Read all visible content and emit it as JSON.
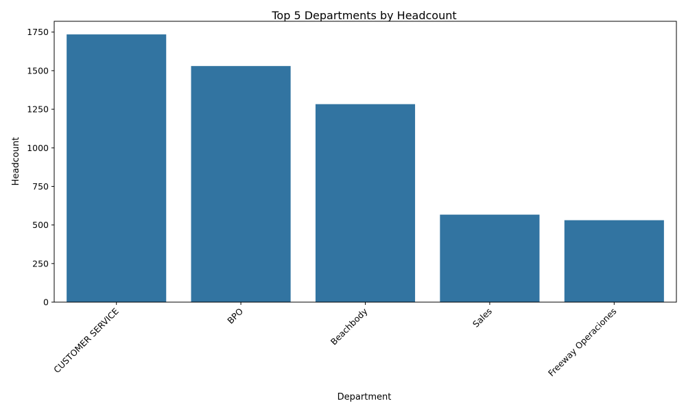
{
  "chart_data": {
    "type": "bar",
    "title": "Top 5 Departments by Headcount",
    "xlabel": "Department",
    "ylabel": "Headcount",
    "categories": [
      "CUSTOMER SERVICE",
      "BPO",
      "Beachbody",
      "Sales",
      "Freeway Operaciones"
    ],
    "values": [
      1735,
      1530,
      1283,
      567,
      531
    ],
    "ylim": [
      0,
      1820
    ],
    "yticks": [
      0,
      250,
      500,
      750,
      1000,
      1250,
      1500,
      1750
    ],
    "bar_color": "#3274a1",
    "grid": false,
    "x_tick_rotation": 45
  }
}
